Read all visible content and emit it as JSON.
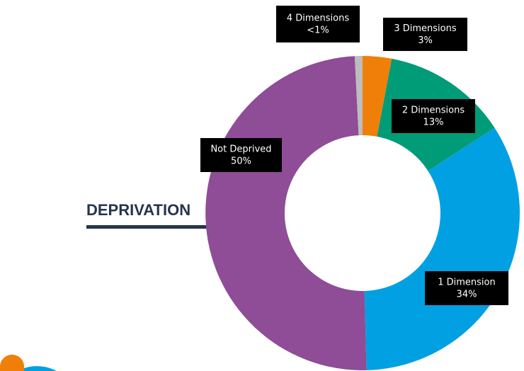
{
  "chart_data": {
    "type": "donut",
    "title": "DEPRIVATION",
    "categories": [
      "3 Dimensions",
      "2 Dimensions",
      "1 Dimension",
      "Not Deprived",
      "4 Dimensions"
    ],
    "values": [
      3,
      13,
      34,
      50,
      0.8
    ],
    "value_labels": [
      "3%",
      "13%",
      "34%",
      "50%",
      "<1%"
    ],
    "colors": [
      "#f07f09",
      "#009b77",
      "#00a0e2",
      "#8f4c97",
      "#bdbdbd"
    ]
  }
}
